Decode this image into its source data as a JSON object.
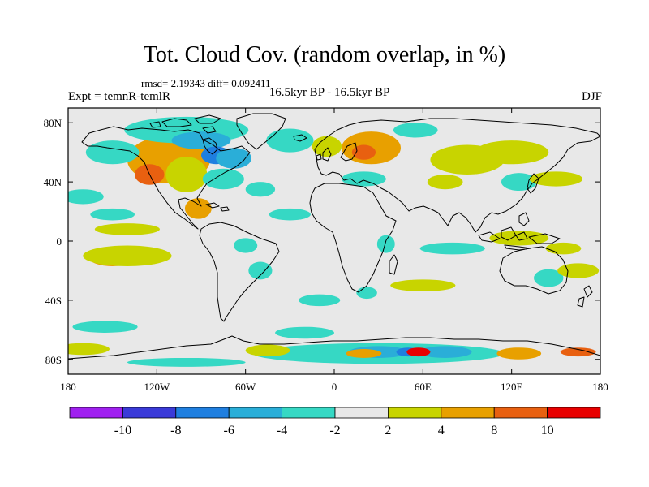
{
  "figure": {
    "title": "Tot. Cloud Cov. (random overlap, in %)",
    "stats": "rmsd= 2.19343 diff= 0.092411",
    "experiment": "Expt = temnR-temlR",
    "period": "16.5kyr BP - 16.5kyr BP",
    "season": "DJF"
  },
  "map_data": {
    "type": "filled-contour map",
    "projection": "cylindrical equidistant",
    "lon_range": [
      -180,
      180
    ],
    "lat_range": [
      -90,
      90
    ],
    "lon_ticks": [
      {
        "value": -180,
        "label": "180"
      },
      {
        "value": -120,
        "label": "120W"
      },
      {
        "value": -60,
        "label": "60W"
      },
      {
        "value": 0,
        "label": "0"
      },
      {
        "value": 60,
        "label": "60E"
      },
      {
        "value": 120,
        "label": "120E"
      },
      {
        "value": 180,
        "label": "180"
      }
    ],
    "lat_ticks": [
      {
        "value": 80,
        "label": "80N"
      },
      {
        "value": 40,
        "label": "40N"
      },
      {
        "value": 0,
        "label": "0"
      },
      {
        "value": -40,
        "label": "40S"
      },
      {
        "value": -80,
        "label": "80S"
      }
    ],
    "background_color": "#e8e8e8",
    "anomaly_regions": [
      {
        "name": "n-america-west-high",
        "lon": -118,
        "lat": 52,
        "rlon": 14,
        "rlat": 9,
        "level": "pos3"
      },
      {
        "name": "n-america-west",
        "lon": -112,
        "lat": 55,
        "rlon": 28,
        "rlat": 16,
        "level": "pos2"
      },
      {
        "name": "n-america-sw",
        "lon": -125,
        "lat": 45,
        "rlon": 10,
        "rlat": 7,
        "level": "pos3"
      },
      {
        "name": "n-america-plains",
        "lon": -100,
        "lat": 45,
        "rlon": 14,
        "rlat": 12,
        "level": "pos1"
      },
      {
        "name": "alaska",
        "lon": -150,
        "lat": 60,
        "rlon": 18,
        "rlat": 8,
        "level": "neg1"
      },
      {
        "name": "arctic-n-america",
        "lon": -100,
        "lat": 75,
        "rlon": 42,
        "rlat": 9,
        "level": "neg1"
      },
      {
        "name": "canada-north",
        "lon": -90,
        "lat": 68,
        "rlon": 20,
        "rlat": 6,
        "level": "neg2"
      },
      {
        "name": "hudson",
        "lon": -80,
        "lat": 58,
        "rlon": 10,
        "rlat": 6,
        "level": "neg3"
      },
      {
        "name": "labrador",
        "lon": -68,
        "lat": 56,
        "rlon": 12,
        "rlat": 7,
        "level": "neg2"
      },
      {
        "name": "n-america-east",
        "lon": -75,
        "lat": 42,
        "rlon": 14,
        "rlat": 7,
        "level": "neg1"
      },
      {
        "name": "gulf-mexico",
        "lon": -92,
        "lat": 22,
        "rlon": 9,
        "rlat": 7,
        "level": "pos2"
      },
      {
        "name": "greenland-sea",
        "lon": -30,
        "lat": 68,
        "rlon": 16,
        "rlat": 8,
        "level": "neg1"
      },
      {
        "name": "europe-nw",
        "lon": -5,
        "lat": 64,
        "rlon": 10,
        "rlat": 7,
        "level": "pos1"
      },
      {
        "name": "scandinavia",
        "lon": 25,
        "lat": 63,
        "rlon": 20,
        "rlat": 11,
        "level": "pos2"
      },
      {
        "name": "scandinavia-core",
        "lon": 20,
        "lat": 60,
        "rlon": 8,
        "rlat": 5,
        "level": "pos3"
      },
      {
        "name": "russia-north",
        "lon": 55,
        "lat": 75,
        "rlon": 15,
        "rlat": 5,
        "level": "neg1"
      },
      {
        "name": "mediterranean",
        "lon": 20,
        "lat": 42,
        "rlon": 15,
        "rlat": 5,
        "level": "neg1"
      },
      {
        "name": "siberia",
        "lon": 90,
        "lat": 55,
        "rlon": 25,
        "rlat": 10,
        "level": "pos1"
      },
      {
        "name": "far-east-russia",
        "lon": 120,
        "lat": 60,
        "rlon": 25,
        "rlat": 8,
        "level": "pos1"
      },
      {
        "name": "asia-central",
        "lon": 75,
        "lat": 40,
        "rlon": 12,
        "rlat": 5,
        "level": "pos1"
      },
      {
        "name": "east-asia-coast",
        "lon": 125,
        "lat": 40,
        "rlon": 12,
        "rlat": 6,
        "level": "neg1"
      },
      {
        "name": "north-pacific-e",
        "lon": 150,
        "lat": 42,
        "rlon": 18,
        "rlat": 5,
        "level": "pos1"
      },
      {
        "name": "north-pacific-w",
        "lon": -170,
        "lat": 30,
        "rlon": 14,
        "rlat": 5,
        "level": "neg1"
      },
      {
        "name": "north-atlantic",
        "lon": -50,
        "lat": 35,
        "rlon": 10,
        "rlat": 5,
        "level": "neg1"
      },
      {
        "name": "atlantic-itcz",
        "lon": -30,
        "lat": 18,
        "rlon": 14,
        "rlat": 4,
        "level": "neg1"
      },
      {
        "name": "east-pacific-itcz",
        "lon": -140,
        "lat": 8,
        "rlon": 22,
        "rlat": 4,
        "level": "pos1"
      },
      {
        "name": "east-pacific-s",
        "lon": -150,
        "lat": -12,
        "rlon": 15,
        "rlat": 5,
        "level": "pos2"
      },
      {
        "name": "east-pacific-s-wide",
        "lon": -140,
        "lat": -10,
        "rlon": 30,
        "rlat": 7,
        "level": "pos1"
      },
      {
        "name": "east-pacific-n",
        "lon": -150,
        "lat": 18,
        "rlon": 15,
        "rlat": 4,
        "level": "neg1"
      },
      {
        "name": "s-america-north",
        "lon": -60,
        "lat": -3,
        "rlon": 8,
        "rlat": 5,
        "level": "neg1"
      },
      {
        "name": "s-america-central",
        "lon": -50,
        "lat": -20,
        "rlon": 8,
        "rlat": 6,
        "level": "neg1"
      },
      {
        "name": "africa-east",
        "lon": 35,
        "lat": -2,
        "rlon": 6,
        "rlat": 6,
        "level": "neg1"
      },
      {
        "name": "indian-ocean",
        "lon": 80,
        "lat": -5,
        "rlon": 22,
        "rlat": 4,
        "level": "neg1"
      },
      {
        "name": "indian-ocean-s",
        "lon": 60,
        "lat": -30,
        "rlon": 22,
        "rlat": 4,
        "level": "pos1"
      },
      {
        "name": "maritime-continent",
        "lon": 125,
        "lat": 2,
        "rlon": 20,
        "rlat": 5,
        "level": "pos1"
      },
      {
        "name": "west-pacific",
        "lon": 155,
        "lat": -5,
        "rlon": 12,
        "rlat": 4,
        "level": "pos1"
      },
      {
        "name": "australia-east",
        "lon": 145,
        "lat": -25,
        "rlon": 10,
        "rlat": 6,
        "level": "neg1"
      },
      {
        "name": "south-pacific",
        "lon": 165,
        "lat": -20,
        "rlon": 14,
        "rlat": 5,
        "level": "pos1"
      },
      {
        "name": "south-atlantic",
        "lon": -10,
        "lat": -40,
        "rlon": 14,
        "rlat": 4,
        "level": "neg1"
      },
      {
        "name": "south-africa",
        "lon": 22,
        "lat": -35,
        "rlon": 7,
        "rlat": 4,
        "level": "neg1"
      },
      {
        "name": "southern-ocean-pacific",
        "lon": -155,
        "lat": -58,
        "rlon": 22,
        "rlat": 4,
        "level": "neg1"
      },
      {
        "name": "southern-ocean-atlantic",
        "lon": -20,
        "lat": -62,
        "rlon": 20,
        "rlat": 4,
        "level": "neg1"
      },
      {
        "name": "antarctic-wide",
        "lon": 30,
        "lat": -76,
        "rlon": 85,
        "rlat": 7,
        "level": "neg1"
      },
      {
        "name": "antarctic-neg2-a",
        "lon": 30,
        "lat": -75,
        "rlon": 20,
        "rlat": 4,
        "level": "neg2"
      },
      {
        "name": "antarctic-neg2-b",
        "lon": 75,
        "lat": -75,
        "rlon": 18,
        "rlat": 4,
        "level": "neg2"
      },
      {
        "name": "antarctic-neg3",
        "lon": 50,
        "lat": -75,
        "rlon": 8,
        "rlat": 3,
        "level": "neg3"
      },
      {
        "name": "weddell",
        "lon": -45,
        "lat": -74,
        "rlon": 15,
        "rlat": 4,
        "level": "pos1"
      },
      {
        "name": "ross-sea",
        "lon": -170,
        "lat": -73,
        "rlon": 18,
        "rlat": 4,
        "level": "pos1"
      },
      {
        "name": "antarctic-pos-a",
        "lon": 20,
        "lat": -76,
        "rlon": 12,
        "rlat": 3,
        "level": "pos2"
      },
      {
        "name": "antarctic-pos-b",
        "lon": 57,
        "lat": -75,
        "rlon": 8,
        "rlat": 3,
        "level": "pos4"
      },
      {
        "name": "antarctic-pos-c",
        "lon": 125,
        "lat": -76,
        "rlon": 15,
        "rlat": 4,
        "level": "pos2"
      },
      {
        "name": "antarctic-pos-d",
        "lon": 165,
        "lat": -75,
        "rlon": 12,
        "rlat": 3,
        "level": "pos3"
      },
      {
        "name": "antarctic-south",
        "lon": -100,
        "lat": -82,
        "rlon": 40,
        "rlat": 3,
        "level": "neg1"
      }
    ]
  },
  "colorbar": {
    "labels": [
      "-10",
      "-8",
      "-6",
      "-4",
      "-2",
      "2",
      "4",
      "8",
      "10"
    ],
    "colors": [
      "#a020f0",
      "#3a3ad8",
      "#1f7fe0",
      "#2aaed8",
      "#36d8c4",
      "#e8e8e8",
      "#c8d400",
      "#e8a000",
      "#e86010",
      "#e80000"
    ]
  },
  "level_colors": {
    "neg5": "#a020f0",
    "neg4": "#3a3ad8",
    "neg3": "#1f7fe0",
    "neg2": "#2aaed8",
    "neg1": "#36d8c4",
    "pos1": "#c8d400",
    "pos2": "#e8a000",
    "pos3": "#e86010",
    "pos4": "#e80000"
  },
  "coastline_color": "#000000"
}
